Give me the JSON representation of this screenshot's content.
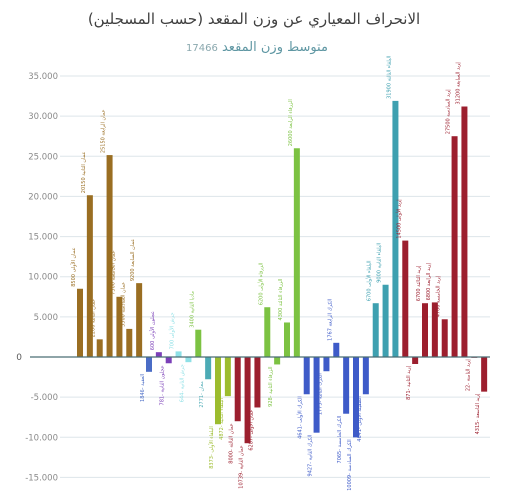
{
  "title": "الانحراف المعياري عن وزن المقعد (حسب المسجلين)",
  "subtitle": "متوسط وزن المقعد",
  "subtitle_value": "17466",
  "chart_data": {
    "type": "bar",
    "title": "الانحراف المعياري عن وزن المقعد (حسب المسجلين)",
    "subtitle": "متوسط وزن المقعد 17466",
    "ylim": [
      -17000,
      37000
    ],
    "ytick_labels": [
      "35.000",
      "30.000",
      "25.000",
      "20.000",
      "15.000",
      "10.000",
      "5.000",
      "0",
      "-5.000",
      "-10.000",
      "-15.000"
    ],
    "ytick_values": [
      35000,
      30000,
      25000,
      20000,
      15000,
      10000,
      5000,
      0,
      -5000,
      -10000,
      -15000
    ],
    "grid": true,
    "bars": [
      {
        "label": "عمان الأولى",
        "value": 8500,
        "color": "#9a6e22"
      },
      {
        "label": "عمان الثانية",
        "value": 20150,
        "color": "#9a6e22"
      },
      {
        "label": "عمان الثالثة",
        "value": 2200,
        "color": "#9a6e22"
      },
      {
        "label": "عمان الرابعة",
        "value": 25150,
        "color": "#9a6e22"
      },
      {
        "label": "عمان الخامسة",
        "value": 7500,
        "color": "#9a6e22"
      },
      {
        "label": "عمان السادسة",
        "value": 3500,
        "color": "#9a6e22"
      },
      {
        "label": "عمان السابعة",
        "value": 9200,
        "color": "#9a6e22"
      },
      {
        "label": "العقبة",
        "value": -1846,
        "color": "#4a6cc6"
      },
      {
        "label": "عجلون الأولى",
        "value": 600,
        "color": "#7b3fb8"
      },
      {
        "label": "عجلون الثانية",
        "value": -781,
        "color": "#7b3fb8"
      },
      {
        "label": "جرش الأولى",
        "value": 700,
        "color": "#8ee0e6"
      },
      {
        "label": "جرش الثانية",
        "value": -644,
        "color": "#8ee0e6"
      },
      {
        "label": "مادبا الثانية",
        "value": 3400,
        "color": "#7cc242"
      },
      {
        "label": "معان",
        "value": -2771,
        "color": "#4cabb5"
      },
      {
        "label": "البلقاء الأولى",
        "value": -8373,
        "color": "#9cbc2e"
      },
      {
        "label": "البلقاء الثانية",
        "value": -4872,
        "color": "#9cbc2e"
      },
      {
        "label": "عمان الثالثة",
        "value": -8000,
        "color": "#9c1f2e"
      },
      {
        "label": "عمان الثانية",
        "value": -10739,
        "color": "#9c1f2e"
      },
      {
        "label": "عمان الأولى",
        "value": -6287,
        "color": "#9c1f2e"
      },
      {
        "label": "الزرقاء الأولى",
        "value": 6200,
        "color": "#7cc242"
      },
      {
        "label": "الزرقاء الثانية",
        "value": -928,
        "color": "#7cc242"
      },
      {
        "label": "الزرقاء الثالثة",
        "value": 4300,
        "color": "#7cc242"
      },
      {
        "label": "الزرقاء الرابعة",
        "value": 26000,
        "color": "#7cc242"
      },
      {
        "label": "الكرك الأولى",
        "value": -4641,
        "color": "#3e5bc8"
      },
      {
        "label": "الكرك الثانية",
        "value": -9427,
        "color": "#3e5bc8"
      },
      {
        "label": "الكرك الثالثة",
        "value": -1773,
        "color": "#3e5bc8"
      },
      {
        "label": "الكرك الرابعة",
        "value": 1767,
        "color": "#3e5bc8"
      },
      {
        "label": "الكرك الخامسة",
        "value": -7065,
        "color": "#3e5bc8"
      },
      {
        "label": "الكرك السادسة",
        "value": -10009,
        "color": "#3e5bc8"
      },
      {
        "label": "الطفيلة الأولى",
        "value": -4641,
        "color": "#3e5bc8"
      },
      {
        "label": "البلقاء الأولى",
        "value": 6700,
        "color": "#3ea0b0"
      },
      {
        "label": "البلقاء الثانية",
        "value": 9000,
        "color": "#3ea0b0"
      },
      {
        "label": "البلقاء الثالثة",
        "value": 31900,
        "color": "#3ea0b0"
      },
      {
        "label": "إربد الأولى",
        "value": 14500,
        "color": "#9c1f2e"
      },
      {
        "label": "إربد الثانية",
        "value": -871,
        "color": "#9c1f2e"
      },
      {
        "label": "إربد الثالثة",
        "value": 6700,
        "color": "#9c1f2e"
      },
      {
        "label": "إربد الرابعة",
        "value": 6800,
        "color": "#9c1f2e"
      },
      {
        "label": "إربد الخامسة",
        "value": 4700,
        "color": "#9c1f2e"
      },
      {
        "label": "إربد السادسة",
        "value": 27500,
        "color": "#9c1f2e"
      },
      {
        "label": "إربد السابعة",
        "value": 31200,
        "color": "#9c1f2e"
      },
      {
        "label": "إربد الثامنة",
        "value": -22,
        "color": "#9c1f2e"
      },
      {
        "label": "إربد التاسعة",
        "value": -4315,
        "color": "#9c1f2e"
      }
    ]
  }
}
